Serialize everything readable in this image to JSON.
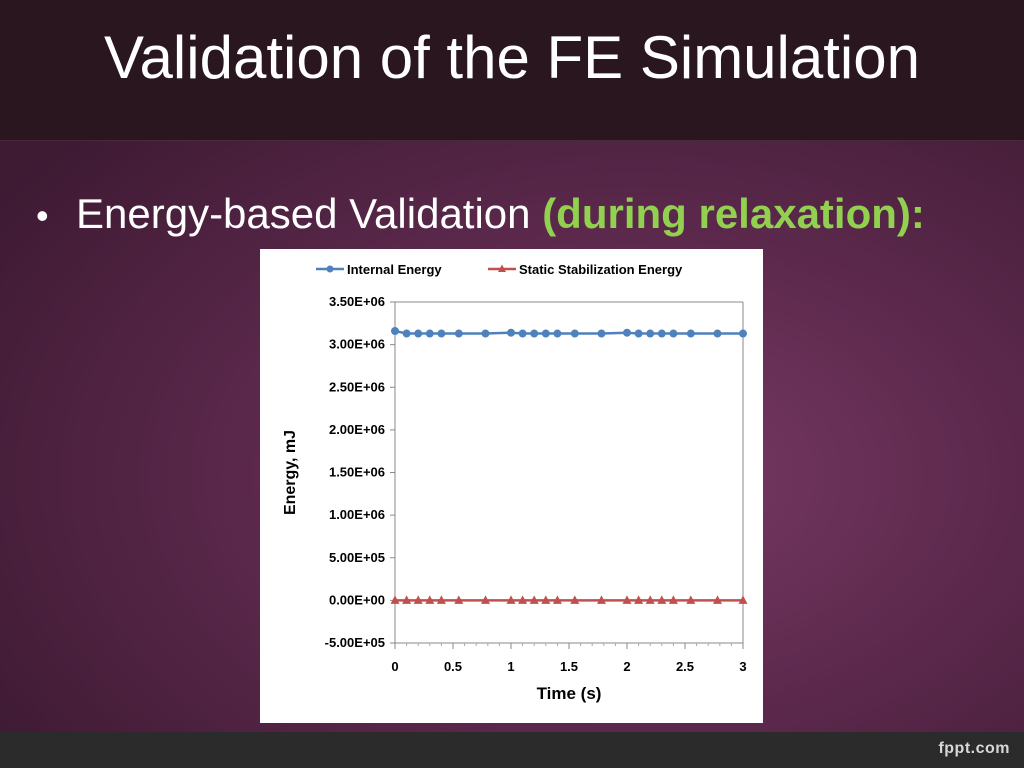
{
  "slide": {
    "title": "Validation of the FE Simulation",
    "bullet_symbol": "•",
    "bullet_text": "Energy-based Validation ",
    "bullet_emphasis": "(during relaxation):",
    "footer_logo": "fppt.com"
  },
  "colors": {
    "internal_energy": "#4f81bd",
    "static_stabilization": "#c0504d",
    "emphasis": "#92d050"
  },
  "chart_data": {
    "type": "line",
    "xlabel": "Time (s)",
    "ylabel": "Energy, mJ",
    "xlim": [
      0,
      3
    ],
    "ylim": [
      -500000,
      3500000
    ],
    "x_ticks": [
      0,
      0.5,
      1,
      1.5,
      2,
      2.5,
      3
    ],
    "x_tick_labels": [
      "0",
      "0.5",
      "1",
      "1.5",
      "2",
      "2.5",
      "3"
    ],
    "y_ticks": [
      3500000,
      3000000,
      2500000,
      2000000,
      1500000,
      1000000,
      500000,
      0,
      -500000
    ],
    "y_tick_labels": [
      "3.50E+06",
      "3.00E+06",
      "2.50E+06",
      "2.00E+06",
      "1.50E+06",
      "1.00E+06",
      "5.00E+05",
      "0.00E+00",
      "-5.00E+05"
    ],
    "grid": false,
    "legend": "top",
    "series": [
      {
        "name": "Internal Energy",
        "marker": "circle",
        "x": [
          0,
          0.1,
          0.2,
          0.3,
          0.4,
          0.55,
          0.78,
          1,
          1.1,
          1.2,
          1.3,
          1.4,
          1.55,
          1.78,
          2,
          2.1,
          2.2,
          2.3,
          2.4,
          2.55,
          2.78,
          3
        ],
        "y": [
          3160000,
          3130000,
          3130000,
          3130000,
          3130000,
          3130000,
          3130000,
          3140000,
          3130000,
          3130000,
          3130000,
          3130000,
          3130000,
          3130000,
          3140000,
          3130000,
          3130000,
          3130000,
          3130000,
          3130000,
          3130000,
          3130000
        ]
      },
      {
        "name": "Static Stabilization Energy",
        "marker": "triangle",
        "x": [
          0,
          0.1,
          0.2,
          0.3,
          0.4,
          0.55,
          0.78,
          1,
          1.1,
          1.2,
          1.3,
          1.4,
          1.55,
          1.78,
          2,
          2.1,
          2.2,
          2.3,
          2.4,
          2.55,
          2.78,
          3
        ],
        "y": [
          0,
          0,
          0,
          0,
          0,
          0,
          0,
          0,
          0,
          0,
          0,
          0,
          0,
          0,
          0,
          0,
          0,
          0,
          0,
          0,
          0,
          0
        ]
      }
    ]
  }
}
